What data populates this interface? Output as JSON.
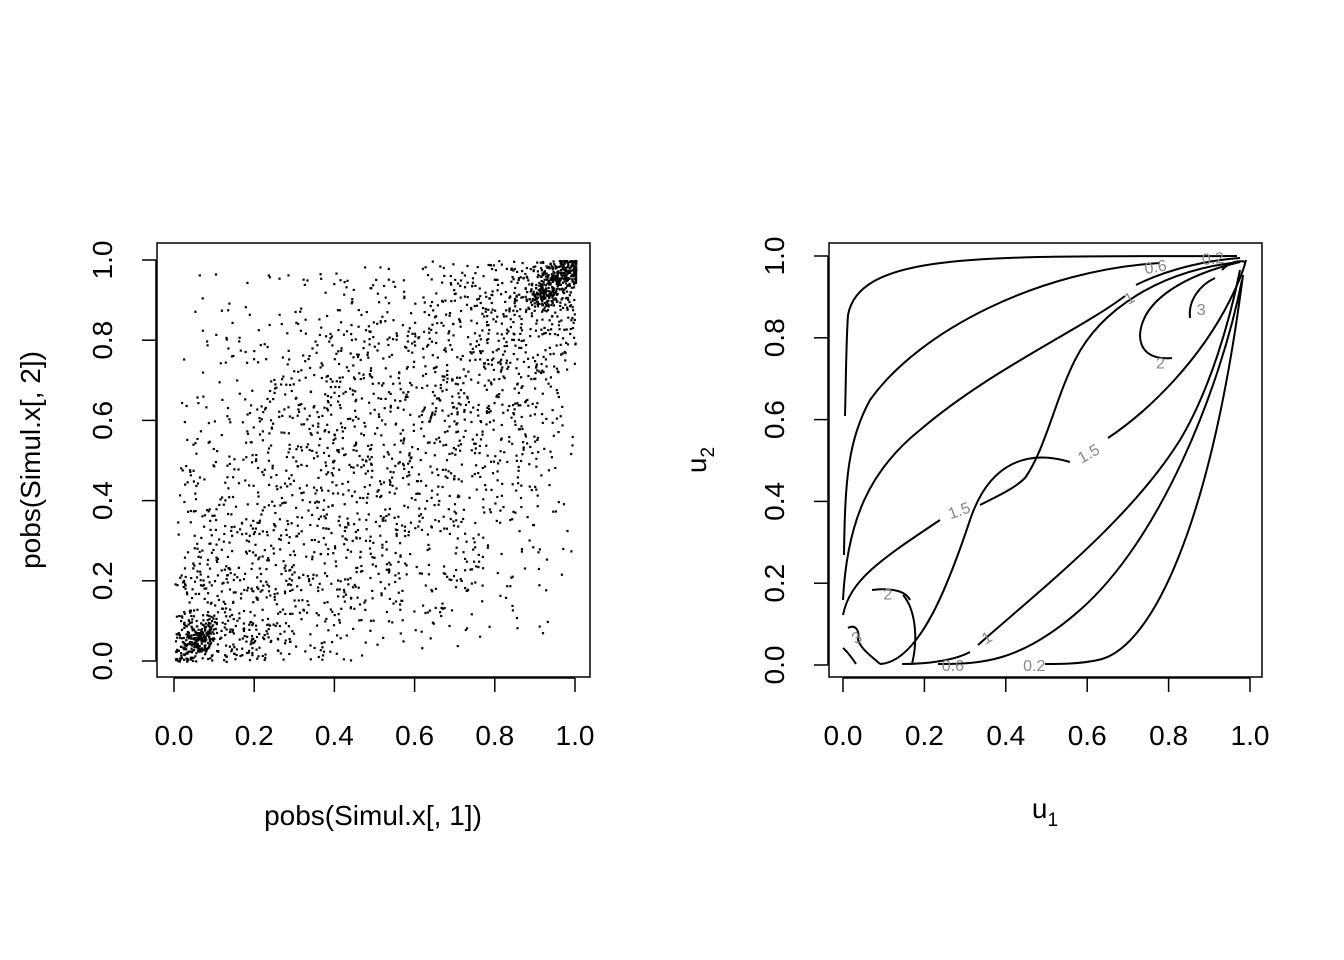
{
  "chart_data": [
    {
      "type": "scatter",
      "title": "",
      "xlabel": "pobs(Simul.x[, 1])",
      "ylabel": "pobs(Simul.x[, 2])",
      "xlim": [
        0,
        1
      ],
      "ylim": [
        0,
        1
      ],
      "xticks": [
        "0.0",
        "0.2",
        "0.4",
        "0.6",
        "0.8",
        "1.0"
      ],
      "yticks": [
        "0.0",
        "0.2",
        "0.4",
        "0.6",
        "0.8",
        "1.0"
      ],
      "grid": false,
      "point_color": "#000000",
      "n_points_approx": 3000,
      "series": [
        {
          "x": [
            0.0,
            0.01,
            0.02,
            0.03,
            0.05,
            0.08,
            0.1,
            0.12,
            0.15,
            0.18,
            0.2,
            0.25,
            0.3,
            0.35,
            0.4,
            0.45,
            0.5,
            0.55,
            0.6,
            0.65,
            0.7,
            0.75,
            0.8,
            0.85,
            0.9,
            0.93,
            0.96,
            0.98,
            0.99,
            1.0
          ],
          "y": [
            0.01,
            0.02,
            0.05,
            0.02,
            0.1,
            0.06,
            0.15,
            0.12,
            0.2,
            0.16,
            0.22,
            0.25,
            0.3,
            0.32,
            0.4,
            0.38,
            0.48,
            0.5,
            0.55,
            0.58,
            0.62,
            0.66,
            0.75,
            0.8,
            0.88,
            0.92,
            0.95,
            0.97,
            0.98,
            0.99
          ]
        }
      ]
    },
    {
      "type": "contour",
      "title": "",
      "xlabel_base": "u",
      "xlabel_sub": "1",
      "ylabel_base": "u",
      "ylabel_sub": "2",
      "xlim": [
        0,
        1
      ],
      "ylim": [
        0,
        1
      ],
      "xticks": [
        "0.0",
        "0.2",
        "0.4",
        "0.6",
        "0.8",
        "1.0"
      ],
      "yticks": [
        "0.0",
        "0.2",
        "0.4",
        "0.6",
        "0.8",
        "1.0"
      ],
      "grid": false,
      "line_color": "#000000",
      "label_color": "#888888",
      "levels": [
        "0.2",
        "0.6",
        "1",
        "1.5",
        "2",
        "3"
      ],
      "contour_labels": [
        {
          "text": "0.2",
          "x": 0.91,
          "y": 0.995,
          "angle": -5
        },
        {
          "text": "0.6",
          "x": 0.77,
          "y": 0.975,
          "angle": -10
        },
        {
          "text": "1",
          "x": 0.71,
          "y": 0.9,
          "angle": -30
        },
        {
          "text": "3",
          "x": 0.88,
          "y": 0.87,
          "angle": 0
        },
        {
          "text": "2",
          "x": 0.78,
          "y": 0.74,
          "angle": 0
        },
        {
          "text": "1.5",
          "x": 0.61,
          "y": 0.52,
          "angle": -30
        },
        {
          "text": "1.5",
          "x": 0.29,
          "y": 0.38,
          "angle": -20
        },
        {
          "text": "2",
          "x": 0.11,
          "y": 0.175,
          "angle": 0
        },
        {
          "text": "3",
          "x": 0.04,
          "y": 0.07,
          "angle": -30
        },
        {
          "text": "1",
          "x": 0.36,
          "y": 0.07,
          "angle": -30
        },
        {
          "text": "0.6",
          "x": 0.27,
          "y": 0.0,
          "angle": 0
        },
        {
          "text": "0.2",
          "x": 0.47,
          "y": 0.0,
          "angle": 0
        }
      ]
    }
  ]
}
